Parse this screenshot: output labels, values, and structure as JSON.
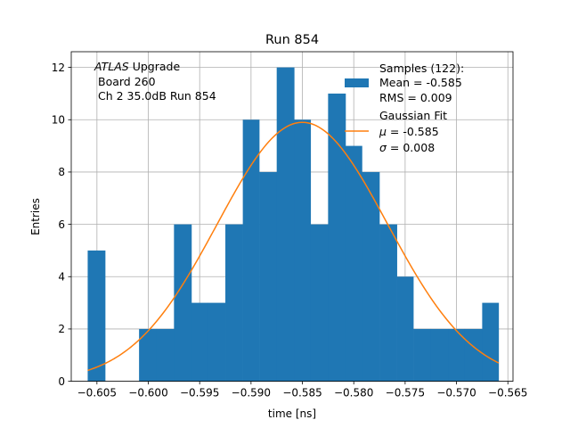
{
  "chart_data": {
    "type": "bar",
    "title": "Run 854",
    "xlabel": "time [ns]",
    "ylabel": "Entries",
    "xlim": [
      -0.6075,
      -0.5645
    ],
    "ylim": [
      0,
      12.6
    ],
    "grid": true,
    "xticks": [
      -0.605,
      -0.6,
      -0.595,
      -0.59,
      -0.585,
      -0.58,
      -0.575,
      -0.57,
      -0.565
    ],
    "xtick_labels": [
      "−0.605",
      "−0.600",
      "−0.595",
      "−0.590",
      "−0.585",
      "−0.580",
      "−0.575",
      "−0.570",
      "−0.565"
    ],
    "yticks": [
      0,
      2,
      4,
      6,
      8,
      10,
      12
    ],
    "ytick_labels": [
      "0",
      "2",
      "4",
      "6",
      "8",
      "10",
      "12"
    ],
    "bins": [
      {
        "x0": -0.6059,
        "x1": -0.6042,
        "value": 5
      },
      {
        "x0": -0.6009,
        "x1": -0.5992,
        "value": 2
      },
      {
        "x0": -0.5992,
        "x1": -0.5975,
        "value": 2
      },
      {
        "x0": -0.5975,
        "x1": -0.5958,
        "value": 6
      },
      {
        "x0": -0.5958,
        "x1": -0.5942,
        "value": 3
      },
      {
        "x0": -0.5942,
        "x1": -0.5925,
        "value": 3
      },
      {
        "x0": -0.5925,
        "x1": -0.5908,
        "value": 6
      },
      {
        "x0": -0.5908,
        "x1": -0.5892,
        "value": 10
      },
      {
        "x0": -0.5892,
        "x1": -0.5875,
        "value": 8
      },
      {
        "x0": -0.5875,
        "x1": -0.5858,
        "value": 12
      },
      {
        "x0": -0.5858,
        "x1": -0.5842,
        "value": 10
      },
      {
        "x0": -0.5842,
        "x1": -0.5825,
        "value": 6
      },
      {
        "x0": -0.5825,
        "x1": -0.5808,
        "value": 11
      },
      {
        "x0": -0.5808,
        "x1": -0.5792,
        "value": 9
      },
      {
        "x0": -0.5792,
        "x1": -0.5775,
        "value": 8
      },
      {
        "x0": -0.5775,
        "x1": -0.5758,
        "value": 6
      },
      {
        "x0": -0.5758,
        "x1": -0.5742,
        "value": 4
      },
      {
        "x0": -0.5742,
        "x1": -0.5725,
        "value": 2
      },
      {
        "x0": -0.5725,
        "x1": -0.5708,
        "value": 2
      },
      {
        "x0": -0.5708,
        "x1": -0.5692,
        "value": 2
      },
      {
        "x0": -0.5692,
        "x1": -0.5675,
        "value": 2
      },
      {
        "x0": -0.5675,
        "x1": -0.5659,
        "value": 3
      }
    ],
    "fit": {
      "name": "Gaussian Fit",
      "mu": -0.585,
      "sigma": 0.0083,
      "amplitude": 9.9,
      "x_range": [
        -0.6059,
        -0.5659
      ]
    },
    "legend": {
      "position": "top-right",
      "samples_title": "Samples (122):",
      "samples_mean": "Mean = -0.585",
      "samples_rms": "RMS = 0.009",
      "fit_title": "Gaussian Fit",
      "fit_mu_symbol": "μ",
      "fit_mu_value": " = -0.585",
      "fit_sigma_symbol": "σ",
      "fit_sigma_value": " = 0.008"
    },
    "annotation": {
      "experiment": "ATLAS",
      "line1_rest": " Upgrade",
      "line2": "Board 260",
      "line3": "Ch 2 35.0dB  Run 854"
    },
    "colors": {
      "bars": "#1f77b4",
      "fit": "#ff7f0e",
      "grid": "#b0b0b0"
    }
  }
}
